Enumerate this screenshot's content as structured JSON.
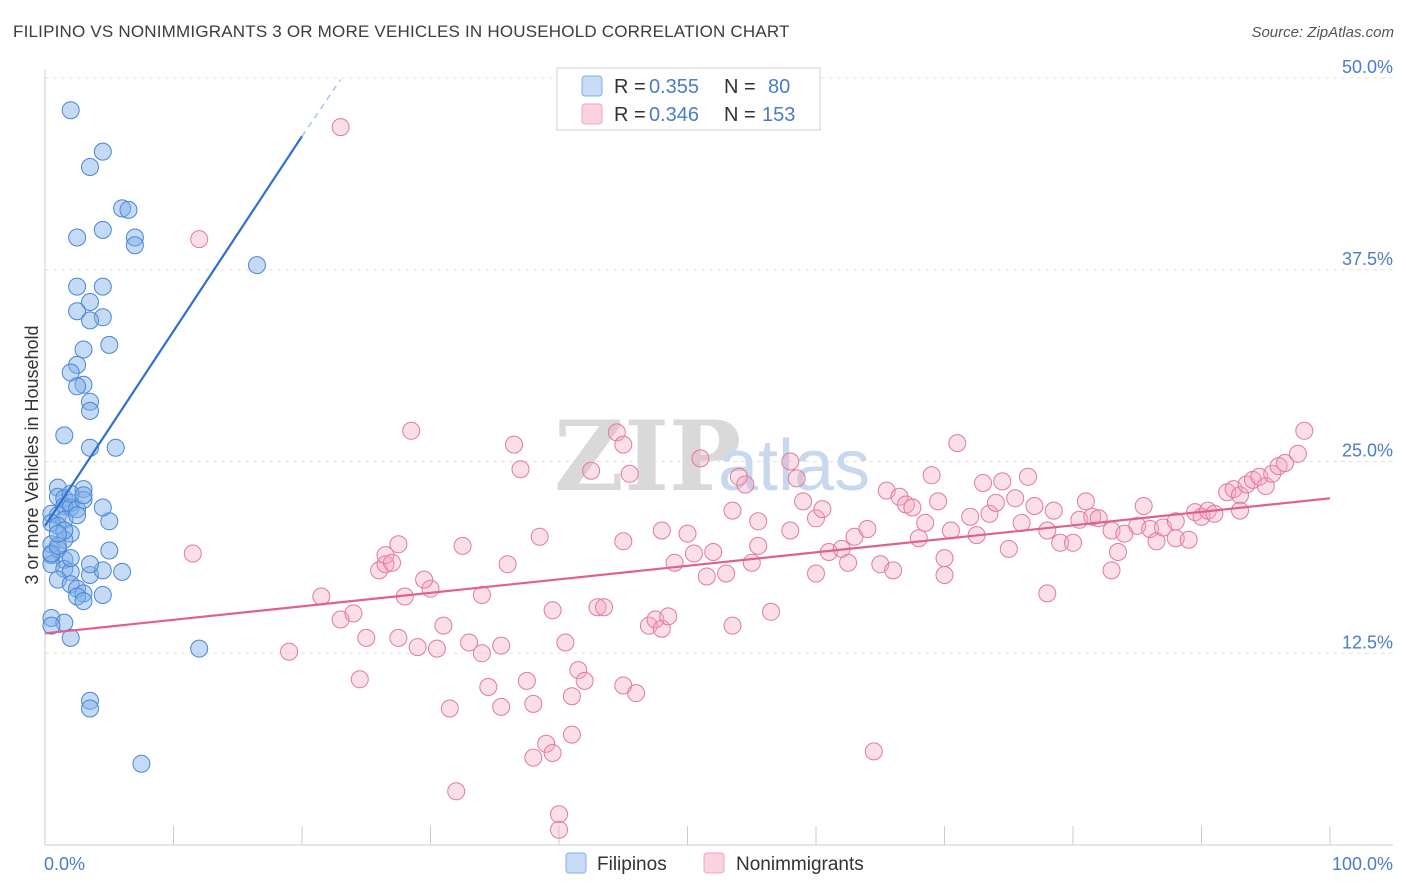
{
  "header": {
    "title": "FILIPINO VS NONIMMIGRANTS 3 OR MORE VEHICLES IN HOUSEHOLD CORRELATION CHART",
    "source": "Source: ZipAtlas.com"
  },
  "watermark": {
    "zip": "ZIP",
    "atlas": "atlas"
  },
  "legend": {
    "rows": [
      {
        "r_label": "R = ",
        "r_value": "0.355",
        "n_label": "N = ",
        "n_value": "80",
        "color": "#7fb0e8"
      },
      {
        "r_label": "R = ",
        "r_value": "0.346",
        "n_label": "N = ",
        "n_value": "153",
        "color": "#f4a3bd"
      }
    ]
  },
  "chart_data": {
    "type": "scatter",
    "ylabel": "3 or more Vehicles in Household",
    "xlabel": "",
    "x_ticks": [
      "0.0%",
      "100.0%"
    ],
    "y_ticks": [
      "12.5%",
      "25.0%",
      "37.5%",
      "50.0%"
    ],
    "xlim": [
      0,
      100
    ],
    "ylim": [
      0,
      50
    ],
    "grid": true,
    "series": [
      {
        "name": "Filipinos",
        "color": "#7fb0e8",
        "stroke": "#4a86d4",
        "trend": {
          "x0": 0,
          "y0": 20.8,
          "x1": 20,
          "y1": 46.2,
          "dash_to_x": 23,
          "dash_to_y": 49.9,
          "color": "#2f6fd1"
        },
        "points": [
          [
            2,
            47.9
          ],
          [
            4.5,
            45.2
          ],
          [
            3.5,
            44.2
          ],
          [
            6,
            41.5
          ],
          [
            6.5,
            41.4
          ],
          [
            2.5,
            39.6
          ],
          [
            4.5,
            40.1
          ],
          [
            7,
            39.6
          ],
          [
            7,
            39.1
          ],
          [
            16.5,
            37.8
          ],
          [
            2.5,
            36.4
          ],
          [
            4.5,
            36.4
          ],
          [
            3.5,
            35.4
          ],
          [
            2.5,
            34.8
          ],
          [
            4.5,
            34.4
          ],
          [
            3.5,
            34.2
          ],
          [
            5,
            32.6
          ],
          [
            3,
            32.3
          ],
          [
            2.5,
            31.3
          ],
          [
            2,
            30.8
          ],
          [
            3,
            30.0
          ],
          [
            2.5,
            29.9
          ],
          [
            3.5,
            28.9
          ],
          [
            3.5,
            28.3
          ],
          [
            1.5,
            26.7
          ],
          [
            3.5,
            25.9
          ],
          [
            5.5,
            25.9
          ],
          [
            1,
            23.3
          ],
          [
            3,
            23.2
          ],
          [
            1,
            22.7
          ],
          [
            1.5,
            22.6
          ],
          [
            2,
            22.3
          ],
          [
            1.5,
            22.1
          ],
          [
            2,
            22.0
          ],
          [
            0.5,
            21.6
          ],
          [
            1,
            21.5
          ],
          [
            1.5,
            21.2
          ],
          [
            2.5,
            21.9
          ],
          [
            0.5,
            21.0
          ],
          [
            1,
            20.8
          ],
          [
            2,
            20.3
          ],
          [
            1.5,
            19.9
          ],
          [
            0.5,
            19.6
          ],
          [
            1,
            19.3
          ],
          [
            1.5,
            18.6
          ],
          [
            0.5,
            18.9
          ],
          [
            0.5,
            18.3
          ],
          [
            1.5,
            18.0
          ],
          [
            2,
            17.8
          ],
          [
            3.5,
            17.6
          ],
          [
            4.5,
            17.9
          ],
          [
            1,
            17.3
          ],
          [
            2,
            17.0
          ],
          [
            2.5,
            16.7
          ],
          [
            3,
            16.4
          ],
          [
            4.5,
            16.3
          ],
          [
            2.5,
            16.2
          ],
          [
            3,
            15.9
          ],
          [
            0.5,
            14.8
          ],
          [
            1.5,
            14.5
          ],
          [
            0.5,
            14.3
          ],
          [
            2,
            13.5
          ],
          [
            12,
            12.8
          ],
          [
            3.5,
            9.4
          ],
          [
            3.5,
            8.9
          ],
          [
            7.5,
            5.3
          ],
          [
            0.5,
            19.0
          ],
          [
            1,
            19.5
          ],
          [
            1.5,
            20.5
          ],
          [
            2.5,
            21.5
          ],
          [
            3,
            22.5
          ],
          [
            2,
            22.9
          ],
          [
            5,
            21.1
          ],
          [
            4.5,
            22.0
          ],
          [
            5,
            19.2
          ],
          [
            3.5,
            18.3
          ],
          [
            6,
            17.8
          ],
          [
            2,
            18.7
          ],
          [
            1,
            20.3
          ],
          [
            3,
            22.8
          ]
        ]
      },
      {
        "name": "Nonimmigrants",
        "color": "#f4a3bd",
        "stroke": "#e27a9f",
        "trend": {
          "x0": 0,
          "y0": 13.8,
          "x1": 100,
          "y1": 22.6,
          "color": "#e0608e"
        },
        "points": [
          [
            23,
            46.8
          ],
          [
            12,
            39.5
          ],
          [
            11.5,
            19.0
          ],
          [
            19,
            12.6
          ],
          [
            21.5,
            16.2
          ],
          [
            23,
            14.7
          ],
          [
            24,
            15.1
          ],
          [
            24.5,
            10.8
          ],
          [
            25,
            13.5
          ],
          [
            26,
            17.9
          ],
          [
            26.5,
            18.3
          ],
          [
            26.5,
            18.9
          ],
          [
            27,
            18.4
          ],
          [
            27.5,
            19.6
          ],
          [
            27.5,
            13.5
          ],
          [
            28,
            16.2
          ],
          [
            28.5,
            27.0
          ],
          [
            29,
            12.9
          ],
          [
            30,
            16.7
          ],
          [
            29.5,
            17.3
          ],
          [
            30.5,
            12.8
          ],
          [
            31,
            14.3
          ],
          [
            31.5,
            8.9
          ],
          [
            32,
            3.5
          ],
          [
            32.5,
            19.5
          ],
          [
            33,
            13.2
          ],
          [
            34,
            16.3
          ],
          [
            34,
            12.5
          ],
          [
            34.5,
            10.3
          ],
          [
            35.5,
            13.0
          ],
          [
            35.5,
            9.0
          ],
          [
            36,
            18.3
          ],
          [
            36.5,
            26.1
          ],
          [
            37,
            24.5
          ],
          [
            37.5,
            10.7
          ],
          [
            38,
            9.2
          ],
          [
            38,
            5.7
          ],
          [
            38.5,
            20.1
          ],
          [
            39,
            6.6
          ],
          [
            39.5,
            15.3
          ],
          [
            39.5,
            6.0
          ],
          [
            40,
            2.0
          ],
          [
            40,
            1.0
          ],
          [
            40.5,
            13.2
          ],
          [
            41,
            9.7
          ],
          [
            41,
            7.2
          ],
          [
            41.5,
            11.4
          ],
          [
            42,
            10.7
          ],
          [
            42.5,
            24.4
          ],
          [
            43,
            15.5
          ],
          [
            43.5,
            15.5
          ],
          [
            44.5,
            26.9
          ],
          [
            45,
            19.8
          ],
          [
            45,
            10.4
          ],
          [
            45,
            26.1
          ],
          [
            45.5,
            24.2
          ],
          [
            46,
            9.9
          ],
          [
            47,
            14.3
          ],
          [
            47.5,
            14.7
          ],
          [
            48,
            14.1
          ],
          [
            48,
            20.5
          ],
          [
            48.5,
            14.9
          ],
          [
            49,
            18.4
          ],
          [
            50,
            20.3
          ],
          [
            50.5,
            19.0
          ],
          [
            51,
            25.2
          ],
          [
            51.5,
            17.5
          ],
          [
            52,
            19.1
          ],
          [
            53,
            17.7
          ],
          [
            53.5,
            21.8
          ],
          [
            53.5,
            14.3
          ],
          [
            54,
            24.0
          ],
          [
            54.5,
            23.5
          ],
          [
            55,
            18.4
          ],
          [
            55.5,
            21.1
          ],
          [
            55.5,
            19.5
          ],
          [
            56.5,
            15.2
          ],
          [
            58,
            20.5
          ],
          [
            58,
            25.0
          ],
          [
            58.5,
            23.9
          ],
          [
            59,
            22.4
          ],
          [
            60,
            21.3
          ],
          [
            60,
            17.7
          ],
          [
            60.5,
            21.9
          ],
          [
            61,
            19.1
          ],
          [
            62,
            19.3
          ],
          [
            62.5,
            18.4
          ],
          [
            63,
            20.1
          ],
          [
            64,
            20.6
          ],
          [
            64.5,
            6.1
          ],
          [
            65,
            18.3
          ],
          [
            65.5,
            23.1
          ],
          [
            66,
            17.9
          ],
          [
            66.5,
            22.7
          ],
          [
            67,
            22.2
          ],
          [
            67.5,
            22.0
          ],
          [
            68,
            20.0
          ],
          [
            68.5,
            21.0
          ],
          [
            69,
            24.1
          ],
          [
            69.5,
            22.4
          ],
          [
            70,
            18.7
          ],
          [
            70,
            17.6
          ],
          [
            70.5,
            20.5
          ],
          [
            71,
            26.2
          ],
          [
            72,
            21.4
          ],
          [
            72.5,
            20.2
          ],
          [
            73,
            23.6
          ],
          [
            73.5,
            21.6
          ],
          [
            74,
            22.3
          ],
          [
            74.5,
            23.7
          ],
          [
            75,
            19.3
          ],
          [
            75.5,
            22.6
          ],
          [
            76,
            21.0
          ],
          [
            76.5,
            24.0
          ],
          [
            77,
            22.1
          ],
          [
            78,
            16.4
          ],
          [
            78,
            20.5
          ],
          [
            78.5,
            21.8
          ],
          [
            79,
            19.7
          ],
          [
            80,
            19.7
          ],
          [
            80.5,
            21.2
          ],
          [
            81,
            22.4
          ],
          [
            81.5,
            21.4
          ],
          [
            82,
            21.3
          ],
          [
            83,
            17.9
          ],
          [
            83,
            20.5
          ],
          [
            83.5,
            19.1
          ],
          [
            84,
            20.3
          ],
          [
            85,
            20.8
          ],
          [
            85.5,
            22.1
          ],
          [
            86,
            20.6
          ],
          [
            86.5,
            19.8
          ],
          [
            87,
            20.7
          ],
          [
            88,
            20.0
          ],
          [
            88,
            21.1
          ],
          [
            89,
            19.9
          ],
          [
            89.5,
            21.7
          ],
          [
            90,
            21.4
          ],
          [
            90.5,
            21.8
          ],
          [
            91,
            21.6
          ],
          [
            92,
            23.0
          ],
          [
            92.5,
            23.2
          ],
          [
            93,
            22.8
          ],
          [
            93.5,
            23.5
          ],
          [
            94,
            23.8
          ],
          [
            94.5,
            24.0
          ],
          [
            95,
            23.4
          ],
          [
            95.5,
            24.2
          ],
          [
            96,
            24.7
          ],
          [
            96.5,
            24.9
          ],
          [
            97.5,
            25.5
          ],
          [
            98,
            27.0
          ],
          [
            93,
            21.8
          ]
        ]
      }
    ]
  },
  "bottom_legend": [
    {
      "label": "Filipinos",
      "color": "#7fb0e8"
    },
    {
      "label": "Nonimmigrants",
      "color": "#f4a3bd"
    }
  ]
}
